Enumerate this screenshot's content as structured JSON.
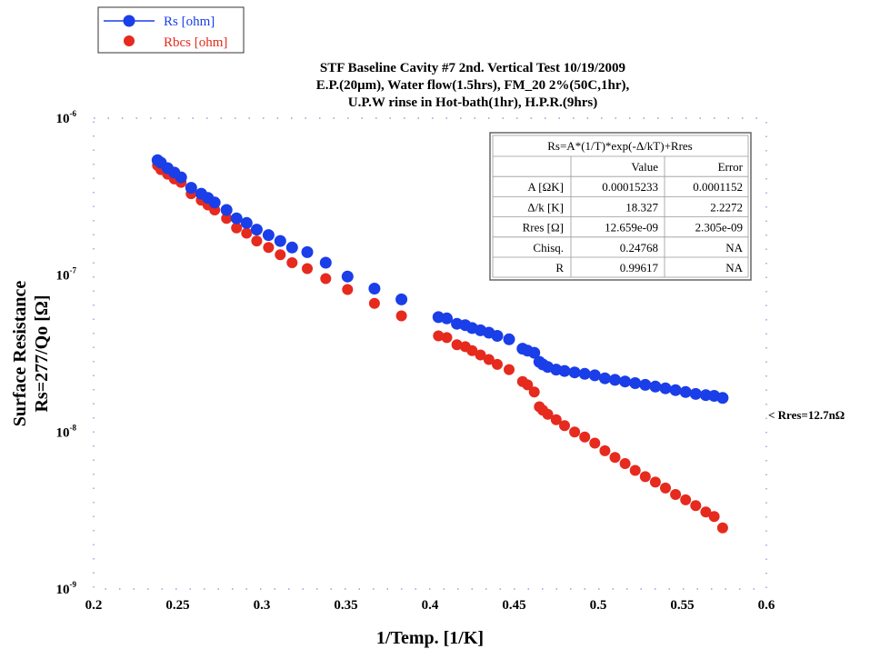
{
  "chart_data": {
    "type": "scatter",
    "title_lines": [
      "STF Baseline Cavity #7 2nd. Vertical Test 10/19/2009",
      "E.P.(20μm), Water flow(1.5hrs), FM_20 2%(50C,1hr),",
      "U.P.W rinse in Hot-bath(1hr), H.P.R.(9hrs)"
    ],
    "xlabel": "1/Temp. [1/K]",
    "ylabel_lines": [
      "Surface Resistance",
      "Rs=277/Qo [Ω]"
    ],
    "xlim": [
      0.2,
      0.6
    ],
    "ylim": [
      1e-09,
      1e-06
    ],
    "yscale": "log",
    "x_ticks": [
      0.2,
      0.25,
      0.3,
      0.35,
      0.4,
      0.45,
      0.5,
      0.55,
      0.6
    ],
    "x_tick_labels": [
      "0.2",
      "0.25",
      "0.3",
      "0.35",
      "0.4",
      "0.45",
      "0.5",
      "0.55",
      "0.6"
    ],
    "y_ticks": [
      1e-06,
      1e-07,
      1e-08,
      1e-09
    ],
    "y_tick_labels": [
      {
        "base": "10",
        "exp": "-6"
      },
      {
        "base": "10",
        "exp": "-7"
      },
      {
        "base": "10",
        "exp": "-8"
      },
      {
        "base": "10",
        "exp": "-9"
      }
    ],
    "grid": false,
    "legend_position": "top-left",
    "series": [
      {
        "name": "Rs [ohm]",
        "color": "#1a3ee8",
        "marker": "circle-with-line",
        "x": [
          0.238,
          0.24,
          0.244,
          0.248,
          0.252,
          0.258,
          0.264,
          0.268,
          0.272,
          0.279,
          0.285,
          0.291,
          0.297,
          0.304,
          0.311,
          0.318,
          0.327,
          0.338,
          0.351,
          0.367,
          0.383,
          0.405,
          0.41,
          0.416,
          0.421,
          0.425,
          0.43,
          0.435,
          0.44,
          0.447,
          0.455,
          0.458,
          0.462,
          0.465,
          0.467,
          0.47,
          0.475,
          0.48,
          0.486,
          0.492,
          0.498,
          0.504,
          0.51,
          0.516,
          0.522,
          0.528,
          0.534,
          0.54,
          0.546,
          0.552,
          0.558,
          0.564,
          0.569,
          0.574
        ],
        "y": [
          5.4e-07,
          5.2e-07,
          4.8e-07,
          4.5e-07,
          4.2e-07,
          3.6e-07,
          3.3e-07,
          3.1e-07,
          2.9e-07,
          2.6e-07,
          2.3e-07,
          2.15e-07,
          1.95e-07,
          1.8e-07,
          1.65e-07,
          1.5e-07,
          1.4e-07,
          1.2e-07,
          9.8e-08,
          8.2e-08,
          7e-08,
          5.4e-08,
          5.3e-08,
          4.9e-08,
          4.8e-08,
          4.6e-08,
          4.45e-08,
          4.3e-08,
          4.1e-08,
          3.9e-08,
          3.4e-08,
          3.3e-08,
          3.2e-08,
          2.8e-08,
          2.7e-08,
          2.6e-08,
          2.5e-08,
          2.45e-08,
          2.4e-08,
          2.35e-08,
          2.3e-08,
          2.2e-08,
          2.15e-08,
          2.1e-08,
          2.05e-08,
          2e-08,
          1.95e-08,
          1.9e-08,
          1.85e-08,
          1.8e-08,
          1.75e-08,
          1.72e-08,
          1.7e-08,
          1.65e-08
        ]
      },
      {
        "name": "Rbcs [ohm]",
        "color": "#e62a1e",
        "marker": "circle",
        "x": [
          0.238,
          0.24,
          0.244,
          0.248,
          0.252,
          0.258,
          0.264,
          0.268,
          0.272,
          0.279,
          0.285,
          0.291,
          0.297,
          0.304,
          0.311,
          0.318,
          0.327,
          0.338,
          0.351,
          0.367,
          0.383,
          0.405,
          0.41,
          0.416,
          0.421,
          0.425,
          0.43,
          0.435,
          0.44,
          0.447,
          0.455,
          0.458,
          0.462,
          0.465,
          0.467,
          0.47,
          0.475,
          0.48,
          0.486,
          0.492,
          0.498,
          0.504,
          0.51,
          0.516,
          0.522,
          0.528,
          0.534,
          0.54,
          0.546,
          0.552,
          0.558,
          0.564,
          0.569,
          0.574
        ],
        "y": [
          5e-07,
          4.7e-07,
          4.4e-07,
          4.1e-07,
          3.9e-07,
          3.3e-07,
          3e-07,
          2.8e-07,
          2.6e-07,
          2.3e-07,
          2e-07,
          1.85e-07,
          1.65e-07,
          1.5e-07,
          1.35e-07,
          1.2e-07,
          1.1e-07,
          9.5e-08,
          8.1e-08,
          6.6e-08,
          5.5e-08,
          4.1e-08,
          4e-08,
          3.6e-08,
          3.5e-08,
          3.3e-08,
          3.1e-08,
          2.9e-08,
          2.7e-08,
          2.5e-08,
          2.1e-08,
          2e-08,
          1.8e-08,
          1.45e-08,
          1.38e-08,
          1.3e-08,
          1.2e-08,
          1.1e-08,
          1e-08,
          9.3e-09,
          8.5e-09,
          7.6e-09,
          6.9e-09,
          6.3e-09,
          5.7e-09,
          5.2e-09,
          4.8e-09,
          4.4e-09,
          4e-09,
          3.7e-09,
          3.4e-09,
          3.1e-09,
          2.9e-09,
          2.45e-09
        ]
      }
    ],
    "fit_table": {
      "formula": "Rs=A*(1/T)*exp(-Δ/kT)+Rres",
      "header": [
        "",
        "Value",
        "Error"
      ],
      "rows": [
        [
          "A [ΩK]",
          "0.00015233",
          "0.0001152"
        ],
        [
          "Δ/k [K]",
          "18.327",
          "2.2272"
        ],
        [
          "Rres [Ω]",
          "12.659e-09",
          "2.305e-09"
        ],
        [
          "Chisq.",
          "0.24768",
          "NA"
        ],
        [
          "R",
          "0.99617",
          "NA"
        ]
      ]
    },
    "annotation": "< Rres=12.7nΩ"
  }
}
